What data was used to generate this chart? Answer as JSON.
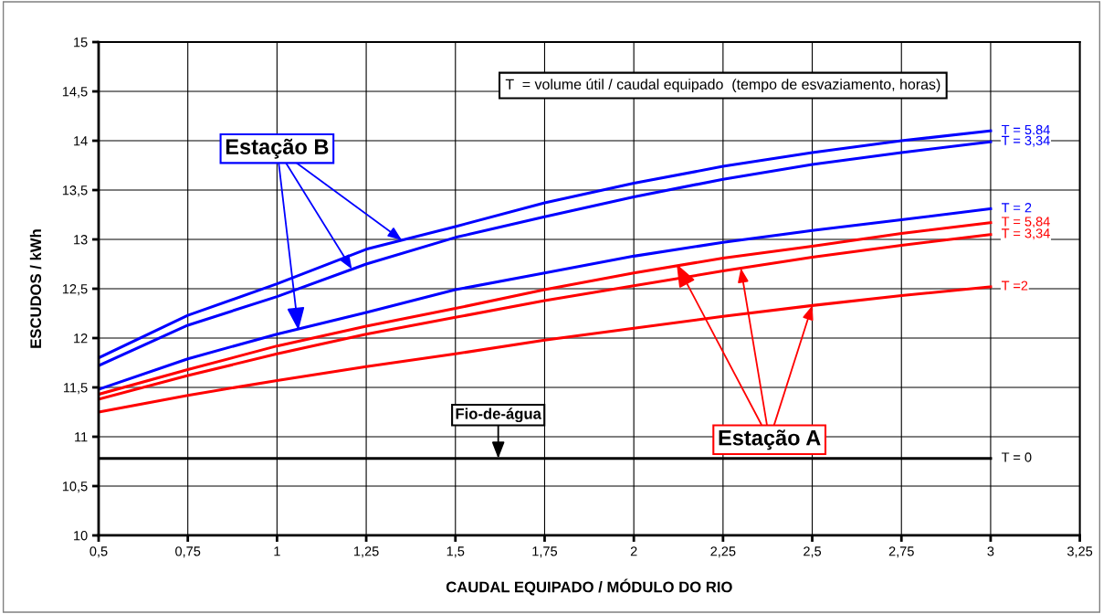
{
  "chart_data": {
    "type": "line",
    "xlabel": "CAUDAL EQUIPADO / MÓDULO DO RIO",
    "ylabel": "ESCUDOS / kWh",
    "x": [
      0.5,
      0.75,
      1.0,
      1.25,
      1.5,
      1.75,
      2.0,
      2.25,
      2.5,
      2.75,
      3.0
    ],
    "series": [
      {
        "name": "T = 5,84",
        "color": "#0000ff",
        "values": [
          11.8,
          12.23,
          12.55,
          12.9,
          13.13,
          13.37,
          13.57,
          13.74,
          13.88,
          14.0,
          14.1
        ]
      },
      {
        "name": "T = 3,34",
        "color": "#0000ff",
        "values": [
          11.72,
          12.13,
          12.42,
          12.75,
          13.02,
          13.23,
          13.43,
          13.61,
          13.76,
          13.88,
          13.99
        ]
      },
      {
        "name": "T = 2",
        "color": "#0000ff",
        "values": [
          11.48,
          11.79,
          12.04,
          12.26,
          12.49,
          12.66,
          12.83,
          12.97,
          13.09,
          13.2,
          13.31
        ]
      },
      {
        "name": "T = 5,84",
        "color": "#ff0000",
        "values": [
          11.43,
          11.68,
          11.92,
          12.12,
          12.3,
          12.49,
          12.66,
          12.81,
          12.93,
          13.06,
          13.17
        ]
      },
      {
        "name": "T = 3,34",
        "color": "#ff0000",
        "values": [
          11.38,
          11.62,
          11.84,
          12.04,
          12.21,
          12.38,
          12.53,
          12.68,
          12.82,
          12.94,
          13.05
        ]
      },
      {
        "name": "T =2",
        "color": "#ff0000",
        "values": [
          11.25,
          11.42,
          11.57,
          11.71,
          11.84,
          11.98,
          12.1,
          12.22,
          12.33,
          12.43,
          12.52
        ]
      },
      {
        "name": "T = 0",
        "color": "#000000",
        "values": [
          10.78,
          10.78,
          10.78,
          10.78,
          10.78,
          10.78,
          10.78,
          10.78,
          10.78,
          10.78,
          10.78
        ]
      }
    ],
    "xlim": [
      0.5,
      3.25
    ],
    "xticks": [
      {
        "value": 0.5,
        "label": "0,5"
      },
      {
        "value": 0.75,
        "label": "0,75"
      },
      1,
      {
        "value": 1.25,
        "label": "1,25"
      },
      {
        "value": 1.5,
        "label": "1,5"
      },
      {
        "value": 1.75,
        "label": "1,75"
      },
      2,
      {
        "value": 2.25,
        "label": "2,25"
      },
      {
        "value": 2.5,
        "label": "2,5"
      },
      {
        "value": 2.75,
        "label": "2,75"
      },
      3,
      {
        "value": 3.25,
        "label": "3,25"
      }
    ],
    "ylim": [
      10,
      15
    ],
    "yticks": [
      10,
      {
        "value": 10.5,
        "label": "10,5"
      },
      11,
      {
        "value": 11.5,
        "label": "11,5"
      },
      12,
      {
        "value": 12.5,
        "label": "12,5"
      },
      13,
      {
        "value": 13.5,
        "label": "13,5"
      },
      14,
      {
        "value": 14.5,
        "label": "14,5"
      },
      15
    ],
    "grid": true,
    "legend": false,
    "annotations": [
      "T  = volume útil / caudal equipado  (tempo de esvaziamento, horas)",
      {
        "text": "Estação B",
        "x": 1.06,
        "y": 12.08
      },
      {
        "text": "Estação A",
        "x": 2.12,
        "y": 12.75
      },
      {
        "text": "Fio-de-água",
        "x": 1.62,
        "y": 10.78
      }
    ]
  }
}
